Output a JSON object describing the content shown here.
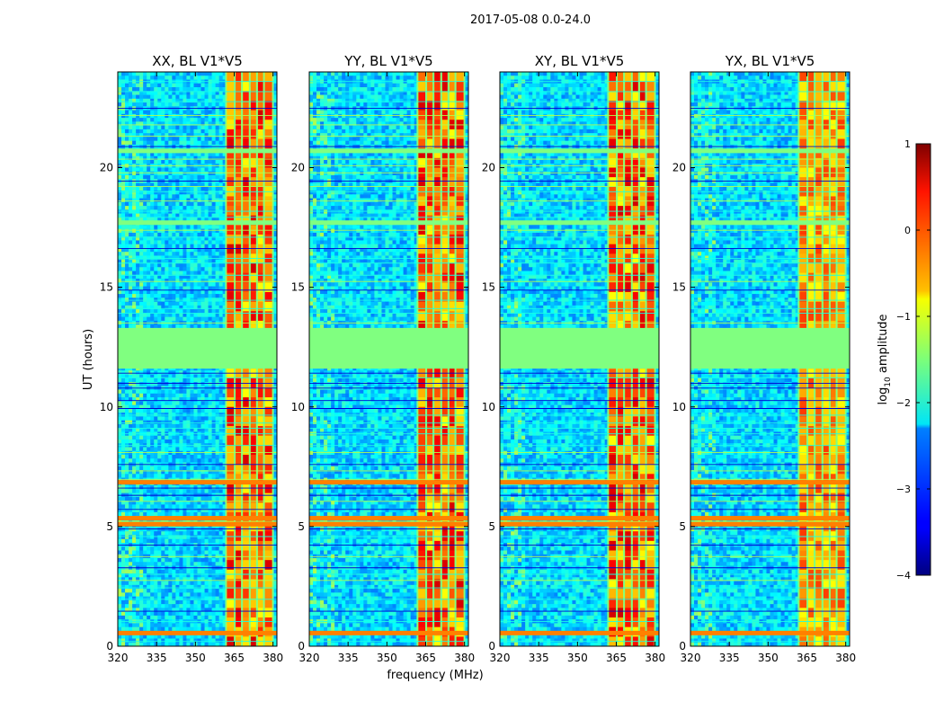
{
  "figure": {
    "suptitle": "2017-05-08 0.0-24.0",
    "xlabel": "frequency (MHz)",
    "ylabel": "UT (hours)"
  },
  "chart_data": {
    "type": "heatmap",
    "title": "2017-05-08 0.0-24.0",
    "xlabel": "frequency (MHz)",
    "ylabel": "UT (hours)",
    "xlim": [
      320,
      381.5
    ],
    "ylim": [
      0,
      24
    ],
    "xticks": [
      320,
      335,
      350,
      365,
      380
    ],
    "yticks": [
      0,
      5,
      10,
      15,
      20
    ],
    "colormap": "jet",
    "gap_hours": [
      11.6,
      13.3
    ],
    "interference_band_mhz": [
      361.8,
      380
    ],
    "panels": [
      {
        "title": "XX, BL V1*V5",
        "band_mhz": [
          361.8,
          380
        ]
      },
      {
        "title": "YY, BL V1*V5",
        "band_mhz": [
          361.8,
          380
        ]
      },
      {
        "title": "XY, BL V1*V5",
        "band_mhz": [
          361.8,
          380
        ]
      },
      {
        "title": "YX, BL V1*V5",
        "band_mhz": [
          361.8,
          380
        ]
      }
    ],
    "colorbar": {
      "label": "log10 amplitude",
      "label_text": "log",
      "label_sub": "10",
      "label_rest": " amplitude",
      "range": [
        -4,
        1
      ],
      "ticks": [
        1,
        0,
        -1,
        -2,
        -3,
        -4
      ],
      "tick_labels": [
        "1",
        "0",
        "−1",
        "−2",
        "−3",
        "−4"
      ]
    }
  }
}
